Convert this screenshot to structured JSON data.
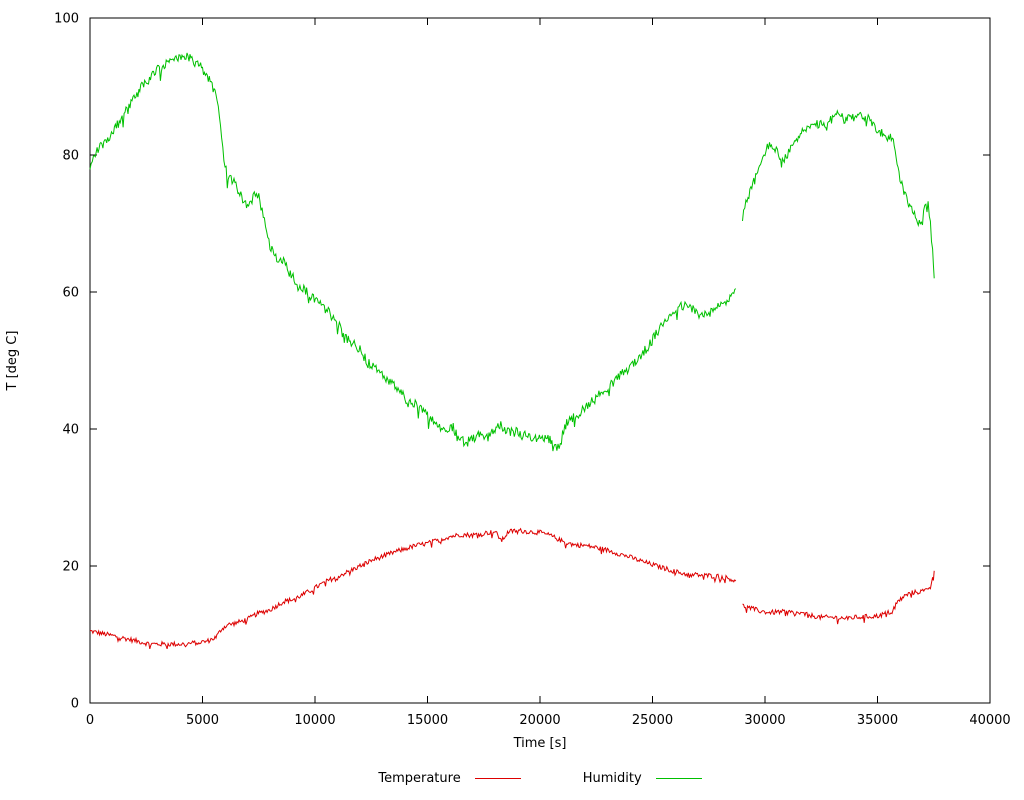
{
  "chart_data": {
    "type": "line",
    "title": "",
    "xlabel": "Time [s]",
    "ylabel": "T [deg C]",
    "xlim": [
      0,
      40000
    ],
    "ylim": [
      0,
      100
    ],
    "x_ticks": [
      0,
      5000,
      10000,
      15000,
      20000,
      25000,
      30000,
      35000,
      40000
    ],
    "y_ticks": [
      0,
      20,
      40,
      60,
      80,
      100
    ],
    "grid": false,
    "legend_position": "bottom-center-outside",
    "series": [
      {
        "name": "Temperature",
        "color": "#dd0000",
        "noise": 0.35,
        "points": [
          [
            0,
            10.5
          ],
          [
            300,
            10.3
          ],
          [
            600,
            10.1
          ],
          [
            900,
            9.9
          ],
          [
            1200,
            9.7
          ],
          [
            1600,
            9.4
          ],
          [
            2000,
            9.1
          ],
          [
            2400,
            8.8
          ],
          [
            2700,
            8.6
          ],
          [
            3200,
            8.6
          ],
          [
            3700,
            8.6
          ],
          [
            4200,
            8.6
          ],
          [
            4700,
            8.8
          ],
          [
            5200,
            9.0
          ],
          [
            5600,
            9.6
          ],
          [
            5850,
            10.8
          ],
          [
            6100,
            11.4
          ],
          [
            6400,
            11.6
          ],
          [
            6800,
            12.0
          ],
          [
            7100,
            12.4
          ],
          [
            7400,
            13.0
          ],
          [
            7700,
            13.3
          ],
          [
            8000,
            13.6
          ],
          [
            8300,
            14.2
          ],
          [
            8600,
            14.8
          ],
          [
            9000,
            15.1
          ],
          [
            9400,
            15.7
          ],
          [
            9800,
            16.4
          ],
          [
            10200,
            17.2
          ],
          [
            10600,
            17.9
          ],
          [
            11000,
            18.5
          ],
          [
            11500,
            19.2
          ],
          [
            12000,
            20.0
          ],
          [
            12500,
            20.8
          ],
          [
            13000,
            21.4
          ],
          [
            13500,
            22.0
          ],
          [
            14000,
            22.5
          ],
          [
            14500,
            23.0
          ],
          [
            15000,
            23.3
          ],
          [
            15500,
            23.8
          ],
          [
            16000,
            24.3
          ],
          [
            16500,
            24.6
          ],
          [
            17000,
            24.5
          ],
          [
            17500,
            24.8
          ],
          [
            18000,
            25.0
          ],
          [
            18300,
            23.7
          ],
          [
            18600,
            25.0
          ],
          [
            19000,
            25.2
          ],
          [
            19500,
            25.0
          ],
          [
            20000,
            24.9
          ],
          [
            20500,
            24.4
          ],
          [
            21000,
            23.6
          ],
          [
            21500,
            23.1
          ],
          [
            22000,
            23.0
          ],
          [
            22500,
            22.7
          ],
          [
            23000,
            22.3
          ],
          [
            23500,
            21.8
          ],
          [
            24000,
            21.3
          ],
          [
            24500,
            20.7
          ],
          [
            25000,
            20.2
          ],
          [
            25500,
            19.7
          ],
          [
            26000,
            19.2
          ],
          [
            26500,
            18.8
          ],
          [
            27000,
            18.7
          ],
          [
            27500,
            18.6
          ],
          [
            28000,
            18.5
          ],
          [
            28400,
            18.2
          ],
          [
            28700,
            17.8
          ],
          null,
          [
            29000,
            14.2
          ],
          [
            29400,
            13.8
          ],
          [
            29800,
            13.4
          ],
          [
            30200,
            13.2
          ],
          [
            30600,
            13.3
          ],
          [
            31000,
            13.3
          ],
          [
            31500,
            13.1
          ],
          [
            32000,
            12.8
          ],
          [
            32500,
            12.5
          ],
          [
            33000,
            12.5
          ],
          [
            33500,
            12.4
          ],
          [
            34000,
            12.5
          ],
          [
            34500,
            12.6
          ],
          [
            35000,
            12.7
          ],
          [
            35300,
            13.0
          ],
          [
            35600,
            13.3
          ],
          [
            35900,
            14.8
          ],
          [
            36200,
            15.6
          ],
          [
            36500,
            16.1
          ],
          [
            36800,
            16.2
          ],
          [
            37100,
            16.4
          ],
          [
            37300,
            17.0
          ],
          [
            37450,
            18.2
          ],
          [
            37520,
            19.3
          ]
        ]
      },
      {
        "name": "Humidity",
        "color": "#00c000",
        "noise": 0.7,
        "points": [
          [
            0,
            78
          ],
          [
            150,
            79.5
          ],
          [
            400,
            81
          ],
          [
            700,
            82
          ],
          [
            1000,
            83.5
          ],
          [
            1300,
            85
          ],
          [
            1600,
            86.5
          ],
          [
            2000,
            88.5
          ],
          [
            2300,
            90
          ],
          [
            2600,
            91
          ],
          [
            3000,
            92.5
          ],
          [
            3300,
            93
          ],
          [
            3600,
            94
          ],
          [
            4000,
            94.5
          ],
          [
            4400,
            94.3
          ],
          [
            4700,
            93.5
          ],
          [
            5000,
            92.5
          ],
          [
            5300,
            91
          ],
          [
            5600,
            88.5
          ],
          [
            5800,
            85
          ],
          [
            5950,
            79
          ],
          [
            6100,
            77
          ],
          [
            6400,
            76
          ],
          [
            6700,
            74
          ],
          [
            7000,
            72.5
          ],
          [
            7200,
            73.5
          ],
          [
            7400,
            75
          ],
          [
            7600,
            72.5
          ],
          [
            7800,
            69.5
          ],
          [
            8000,
            66.5
          ],
          [
            8300,
            65
          ],
          [
            8600,
            64.5
          ],
          [
            8900,
            62.5
          ],
          [
            9200,
            61.5
          ],
          [
            9500,
            60.5
          ],
          [
            9800,
            59.5
          ],
          [
            10100,
            58.5
          ],
          [
            10500,
            57.5
          ],
          [
            11000,
            55.5
          ],
          [
            11300,
            53.5
          ],
          [
            11700,
            52.5
          ],
          [
            12000,
            51.5
          ],
          [
            12400,
            49.5
          ],
          [
            12800,
            48.5
          ],
          [
            13200,
            47
          ],
          [
            13600,
            46
          ],
          [
            14000,
            44.5
          ],
          [
            14500,
            43.5
          ],
          [
            15000,
            42
          ],
          [
            15400,
            41
          ],
          [
            15800,
            39.5
          ],
          [
            16100,
            40.5
          ],
          [
            16400,
            38.5
          ],
          [
            16700,
            38
          ],
          [
            17000,
            38.5
          ],
          [
            17300,
            39.5
          ],
          [
            17600,
            38.5
          ],
          [
            18000,
            40
          ],
          [
            18300,
            40.5
          ],
          [
            18600,
            39.5
          ],
          [
            18900,
            40
          ],
          [
            19200,
            39
          ],
          [
            19500,
            39
          ],
          [
            19800,
            38.5
          ],
          [
            20100,
            39
          ],
          [
            20400,
            38.5
          ],
          [
            20700,
            37.5
          ],
          [
            20900,
            37.5
          ],
          [
            21100,
            40.5
          ],
          [
            21400,
            41.5
          ],
          [
            21800,
            42.5
          ],
          [
            22300,
            44
          ],
          [
            22800,
            45.5
          ],
          [
            23300,
            47
          ],
          [
            23800,
            48.5
          ],
          [
            24300,
            50
          ],
          [
            24800,
            52
          ],
          [
            25200,
            54
          ],
          [
            25600,
            56
          ],
          [
            26000,
            57.5
          ],
          [
            26400,
            58
          ],
          [
            26800,
            57.5
          ],
          [
            27200,
            56.5
          ],
          [
            27600,
            57
          ],
          [
            28000,
            58
          ],
          [
            28400,
            59
          ],
          [
            28700,
            60.5
          ],
          null,
          [
            29000,
            71
          ],
          [
            29200,
            73.5
          ],
          [
            29500,
            76
          ],
          [
            29800,
            78.5
          ],
          [
            30000,
            80.5
          ],
          [
            30200,
            81.5
          ],
          [
            30450,
            81
          ],
          [
            30650,
            79.5
          ],
          [
            30900,
            79.5
          ],
          [
            31100,
            80.5
          ],
          [
            31400,
            82.5
          ],
          [
            31700,
            83.5
          ],
          [
            32000,
            84
          ],
          [
            32400,
            84.5
          ],
          [
            32700,
            84
          ],
          [
            33000,
            85.5
          ],
          [
            33300,
            86
          ],
          [
            33600,
            85
          ],
          [
            33900,
            85.5
          ],
          [
            34200,
            86
          ],
          [
            34500,
            85.5
          ],
          [
            34800,
            84.5
          ],
          [
            35100,
            83.5
          ],
          [
            35400,
            82.5
          ],
          [
            35700,
            82.5
          ],
          [
            36000,
            76.5
          ],
          [
            36300,
            73.5
          ],
          [
            36600,
            71.5
          ],
          [
            36900,
            70
          ],
          [
            37100,
            72
          ],
          [
            37250,
            73
          ],
          [
            37350,
            70
          ],
          [
            37450,
            66
          ],
          [
            37520,
            62
          ]
        ]
      }
    ]
  }
}
